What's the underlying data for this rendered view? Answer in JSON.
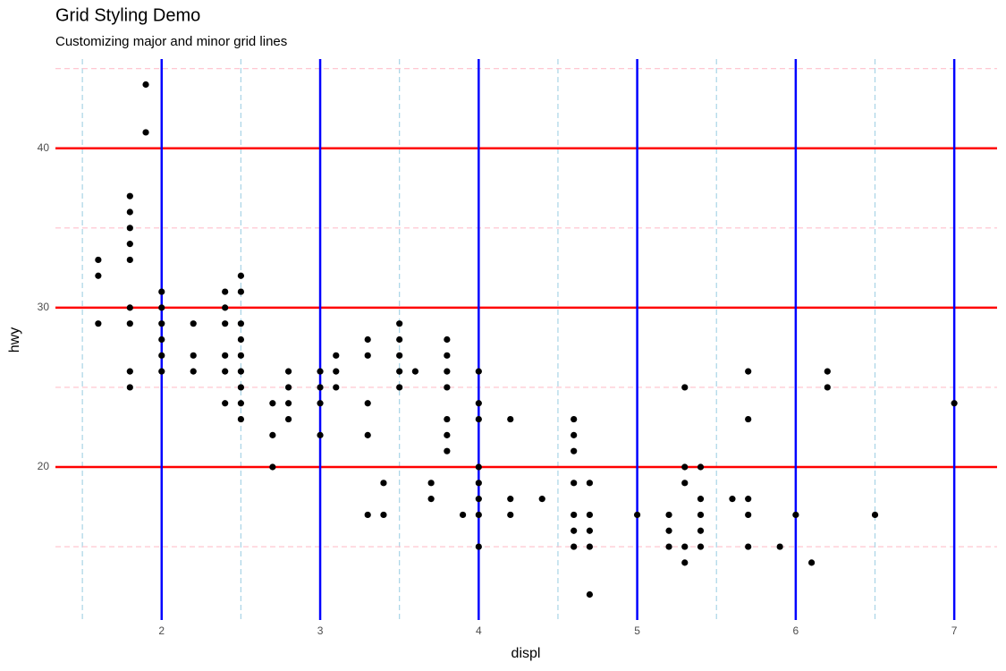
{
  "chart_data": {
    "type": "scatter",
    "title": "Grid Styling Demo",
    "subtitle": "Customizing major and minor grid lines",
    "x_label": "displ",
    "y_label": "hwy",
    "xlim": [
      1.33,
      7.27
    ],
    "ylim": [
      10.4,
      45.6
    ],
    "xticks": [
      2,
      3,
      4,
      5,
      6,
      7
    ],
    "yticks": [
      20,
      30,
      40
    ],
    "x_minor_ticks": [
      1.5,
      2.5,
      3.5,
      4.5,
      5.5,
      6.5
    ],
    "y_minor_ticks": [
      15,
      25,
      35,
      45
    ],
    "x_major_grid_color": "#0000ff",
    "y_major_grid_color": "#ff0000",
    "x_minor_grid_color": "#a8d4e6",
    "y_minor_grid_color": "#ffc0cb",
    "point_color": "#000000",
    "x": [
      1.6,
      1.6,
      1.6,
      1.8,
      1.8,
      1.8,
      1.8,
      1.8,
      1.8,
      1.8,
      1.8,
      1.8,
      1.9,
      1.9,
      2.0,
      2.0,
      2.0,
      2.0,
      2.0,
      2.0,
      2.2,
      2.2,
      2.2,
      2.4,
      2.4,
      2.4,
      2.4,
      2.4,
      2.4,
      2.5,
      2.5,
      2.5,
      2.5,
      2.5,
      2.5,
      2.5,
      2.5,
      2.5,
      2.7,
      2.7,
      2.7,
      2.8,
      2.8,
      2.8,
      2.8,
      3.0,
      3.0,
      3.0,
      3.0,
      3.1,
      3.1,
      3.1,
      3.3,
      3.3,
      3.3,
      3.3,
      3.3,
      3.4,
      3.4,
      3.5,
      3.5,
      3.5,
      3.5,
      3.5,
      3.6,
      3.7,
      3.7,
      3.8,
      3.8,
      3.8,
      3.8,
      3.8,
      3.8,
      3.8,
      3.9,
      4.0,
      4.0,
      4.0,
      4.0,
      4.0,
      4.0,
      4.0,
      4.0,
      4.2,
      4.2,
      4.2,
      4.4,
      4.6,
      4.6,
      4.6,
      4.6,
      4.6,
      4.6,
      4.6,
      4.7,
      4.7,
      4.7,
      4.7,
      4.7,
      5.0,
      5.2,
      5.2,
      5.2,
      5.3,
      5.3,
      5.3,
      5.3,
      5.3,
      5.4,
      5.4,
      5.4,
      5.4,
      5.4,
      5.6,
      5.7,
      5.7,
      5.7,
      5.7,
      5.7,
      5.9,
      6.0,
      6.1,
      6.2,
      6.2,
      6.5,
      7.0
    ],
    "y": [
      33,
      32,
      29,
      37,
      36,
      35,
      34,
      33,
      30,
      29,
      26,
      25,
      44,
      41,
      31,
      30,
      29,
      28,
      27,
      26,
      29,
      27,
      26,
      31,
      30,
      29,
      27,
      26,
      24,
      32,
      31,
      29,
      28,
      27,
      26,
      25,
      24,
      23,
      24,
      22,
      20,
      26,
      25,
      24,
      23,
      26,
      25,
      24,
      22,
      27,
      26,
      25,
      28,
      27,
      24,
      22,
      17,
      19,
      17,
      29,
      28,
      27,
      26,
      25,
      26,
      19,
      18,
      28,
      27,
      26,
      25,
      23,
      22,
      21,
      17,
      26,
      24,
      23,
      20,
      19,
      18,
      17,
      15,
      23,
      18,
      17,
      18,
      23,
      22,
      21,
      19,
      17,
      16,
      15,
      19,
      17,
      16,
      15,
      12,
      17,
      17,
      16,
      15,
      25,
      20,
      19,
      15,
      14,
      20,
      18,
      17,
      16,
      15,
      18,
      26,
      23,
      18,
      17,
      15,
      15,
      17,
      14,
      26,
      25,
      17,
      24
    ]
  }
}
